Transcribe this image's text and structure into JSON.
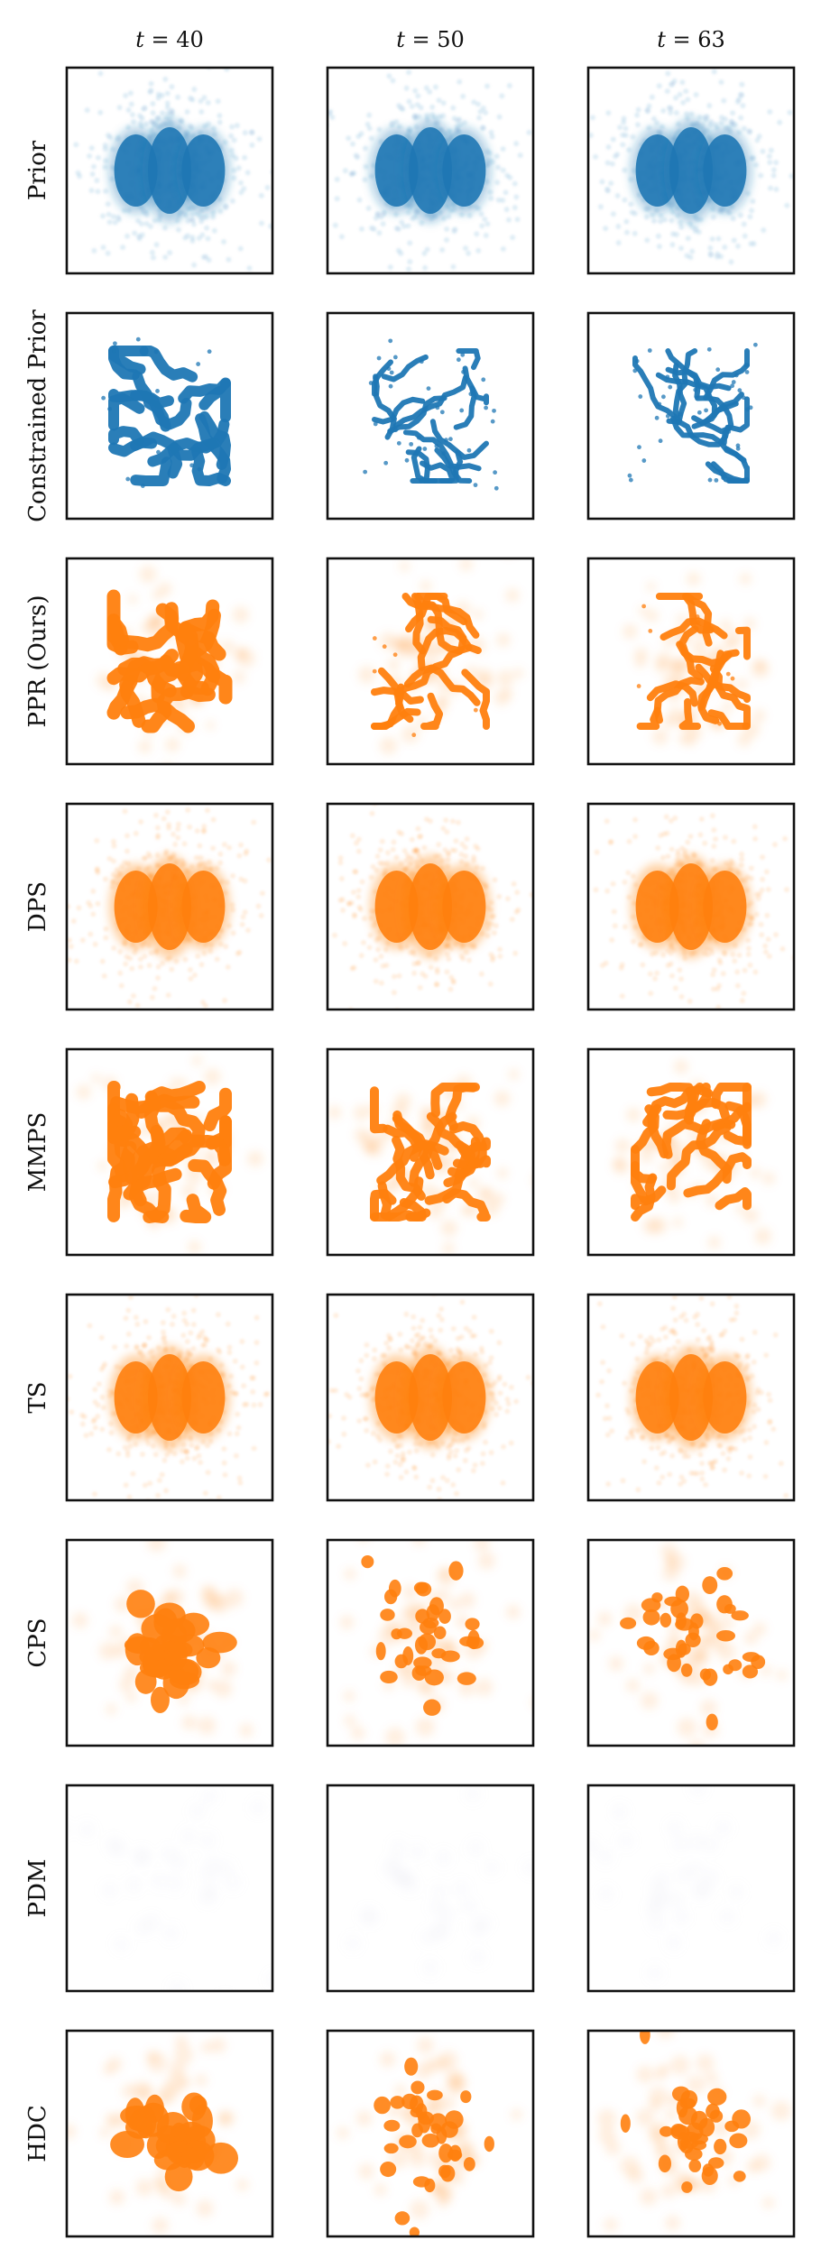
{
  "chart_data": {
    "type": "scatter",
    "title": "",
    "grid": false,
    "layout": "grid of 9 rows x 3 columns of scatter panels",
    "columns": [
      {
        "var": "t",
        "value": "40"
      },
      {
        "var": "t",
        "value": "50"
      },
      {
        "var": "t",
        "value": "63"
      }
    ],
    "rows": [
      {
        "label": "Prior",
        "color": "#1f77b4",
        "pattern": "blobs"
      },
      {
        "label": "Constrained Prior",
        "color": "#1f77b4",
        "pattern": "worms"
      },
      {
        "label": "PPR (Ours)",
        "color": "#ff7f0e",
        "pattern": "worms"
      },
      {
        "label": "DPS",
        "color": "#ff7f0e",
        "pattern": "blobs"
      },
      {
        "label": "MMPS",
        "color": "#ff7f0e",
        "pattern": "worms-dense"
      },
      {
        "label": "TS",
        "color": "#ff7f0e",
        "pattern": "blobs"
      },
      {
        "label": "CPS",
        "color": "#ff7f0e",
        "pattern": "patches"
      },
      {
        "label": "PDM",
        "color": "#ff7f0e",
        "pattern": "empty"
      },
      {
        "label": "HDC",
        "color": "#ff7f0e",
        "pattern": "patches"
      }
    ]
  }
}
